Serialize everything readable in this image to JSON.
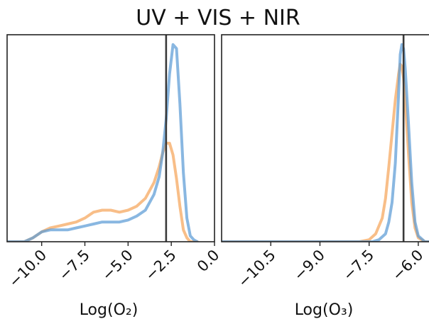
{
  "figure": {
    "title": "UV + VIS + NIR"
  },
  "colors": {
    "blue": "#5b9bd5",
    "orange": "#f5a55a",
    "reference": "#3a3a3a"
  },
  "chart_data": [
    {
      "type": "line",
      "title": "",
      "xlabel": "Log(O₂)",
      "ylabel": "",
      "xlim": [
        -12.0,
        0.0
      ],
      "ylim": [
        0,
        1.05
      ],
      "xticks": [
        -10.0,
        -7.5,
        -5.0,
        -2.5,
        0.0
      ],
      "xtick_labels": [
        "−10.0",
        "−7.5",
        "−5.0",
        "−2.5",
        "0.0"
      ],
      "yticks": [],
      "grid": false,
      "reference_x": -2.8,
      "series": [
        {
          "color": "blue",
          "x": [
            -12.0,
            -11.0,
            -10.5,
            -10.0,
            -9.5,
            -9.0,
            -8.5,
            -8.0,
            -7.5,
            -7.0,
            -6.5,
            -6.0,
            -5.5,
            -5.0,
            -4.5,
            -4.0,
            -3.5,
            -3.2,
            -3.0,
            -2.8,
            -2.6,
            -2.4,
            -2.2,
            -2.0,
            -1.8,
            -1.6,
            -1.4,
            -1.2,
            -1.0
          ],
          "y": [
            0.0,
            0.0,
            0.02,
            0.05,
            0.06,
            0.06,
            0.06,
            0.07,
            0.08,
            0.09,
            0.1,
            0.1,
            0.1,
            0.11,
            0.13,
            0.16,
            0.24,
            0.33,
            0.45,
            0.62,
            0.85,
            1.0,
            0.98,
            0.7,
            0.35,
            0.12,
            0.03,
            0.01,
            0.0
          ]
        },
        {
          "color": "orange",
          "x": [
            -12.0,
            -11.0,
            -10.5,
            -10.0,
            -9.5,
            -9.0,
            -8.5,
            -8.0,
            -7.5,
            -7.0,
            -6.5,
            -6.0,
            -5.5,
            -5.0,
            -4.5,
            -4.0,
            -3.5,
            -3.2,
            -3.0,
            -2.8,
            -2.6,
            -2.4,
            -2.2,
            -2.0,
            -1.8,
            -1.6,
            -1.4,
            -1.2,
            -1.0
          ],
          "y": [
            0.0,
            0.0,
            0.02,
            0.05,
            0.07,
            0.08,
            0.09,
            0.1,
            0.12,
            0.15,
            0.16,
            0.16,
            0.15,
            0.16,
            0.18,
            0.22,
            0.3,
            0.38,
            0.45,
            0.5,
            0.5,
            0.44,
            0.32,
            0.18,
            0.06,
            0.02,
            0.0,
            0.0,
            0.0
          ]
        }
      ]
    },
    {
      "type": "line",
      "title": "",
      "xlabel": "Log(O₃)",
      "ylabel": "",
      "xlim": [
        -12.0,
        -5.5
      ],
      "ylim": [
        0,
        1.05
      ],
      "xticks": [
        -10.5,
        -9.0,
        -7.5,
        -6.0
      ],
      "xtick_labels": [
        "−10.5",
        "−9.0",
        "−7.5",
        "−6.0"
      ],
      "yticks": [],
      "grid": false,
      "reference_x": -6.45,
      "series": [
        {
          "color": "blue",
          "x": [
            -12.0,
            -7.8,
            -7.4,
            -7.2,
            -7.0,
            -6.9,
            -6.8,
            -6.7,
            -6.6,
            -6.55,
            -6.5,
            -6.45,
            -6.4,
            -6.3,
            -6.2,
            -6.1,
            -6.0,
            -5.8,
            -5.5
          ],
          "y": [
            0.0,
            0.0,
            0.0,
            0.01,
            0.04,
            0.1,
            0.2,
            0.4,
            0.75,
            0.95,
            1.0,
            0.98,
            0.88,
            0.6,
            0.3,
            0.1,
            0.03,
            0.0,
            0.0
          ]
        },
        {
          "color": "orange",
          "x": [
            -12.0,
            -7.8,
            -7.5,
            -7.3,
            -7.1,
            -7.0,
            -6.9,
            -6.8,
            -6.7,
            -6.6,
            -6.55,
            -6.5,
            -6.45,
            -6.4,
            -6.3,
            -6.2,
            -6.1,
            -6.0,
            -5.8,
            -5.5
          ],
          "y": [
            0.0,
            0.0,
            0.01,
            0.04,
            0.12,
            0.22,
            0.38,
            0.55,
            0.72,
            0.85,
            0.9,
            0.89,
            0.83,
            0.72,
            0.45,
            0.2,
            0.07,
            0.02,
            0.0,
            0.0
          ]
        }
      ]
    }
  ]
}
